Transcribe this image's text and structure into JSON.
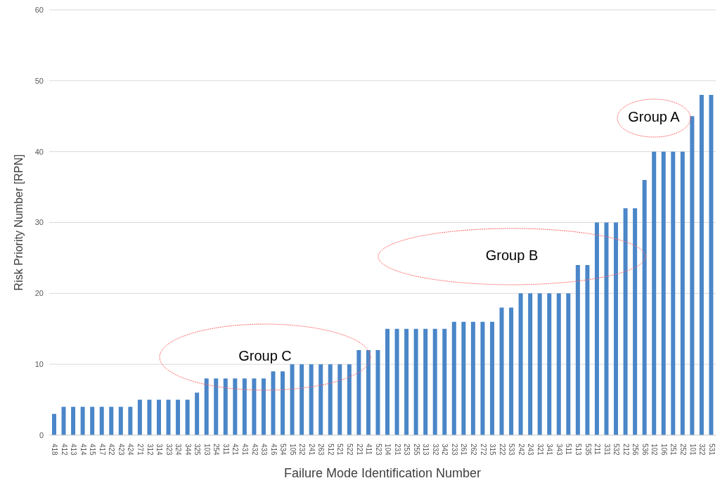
{
  "chart_data": {
    "type": "bar",
    "xlabel": "Failure Mode Identification Number",
    "ylabel": "Risk Priority Number [RPN]",
    "categories": [
      "418",
      "412",
      "413",
      "414",
      "415",
      "417",
      "422",
      "423",
      "424",
      "271",
      "312",
      "314",
      "323",
      "324",
      "344",
      "325",
      "103",
      "254",
      "311",
      "421",
      "431",
      "432",
      "433",
      "416",
      "534",
      "105",
      "232",
      "241",
      "263",
      "512",
      "521",
      "522",
      "221",
      "411",
      "523",
      "104",
      "231",
      "253",
      "255",
      "313",
      "332",
      "342",
      "233",
      "261",
      "262",
      "272",
      "315",
      "222",
      "533",
      "242",
      "243",
      "321",
      "341",
      "343",
      "511",
      "513",
      "535",
      "211",
      "331",
      "532",
      "212",
      "256",
      "536",
      "102",
      "106",
      "251",
      "252",
      "101",
      "322",
      "531"
    ],
    "values": [
      3,
      4,
      4,
      4,
      4,
      4,
      4,
      4,
      4,
      5,
      5,
      5,
      5,
      5,
      5,
      6,
      8,
      8,
      8,
      8,
      8,
      8,
      8,
      9,
      9,
      10,
      10,
      10,
      10,
      10,
      10,
      10,
      12,
      12,
      12,
      15,
      15,
      15,
      15,
      15,
      15,
      15,
      16,
      16,
      16,
      16,
      16,
      18,
      18,
      20,
      20,
      20,
      20,
      20,
      20,
      24,
      24,
      30,
      30,
      30,
      32,
      32,
      36,
      40,
      40,
      40,
      40,
      45,
      48,
      48
    ],
    "color": "#4a86c8",
    "ylim": [
      0,
      60
    ],
    "yticks": [
      0,
      10,
      20,
      30,
      40,
      50,
      60
    ],
    "grid": "y",
    "legend": false,
    "annotations": [
      "Group A",
      "Group B",
      "Group C"
    ]
  }
}
